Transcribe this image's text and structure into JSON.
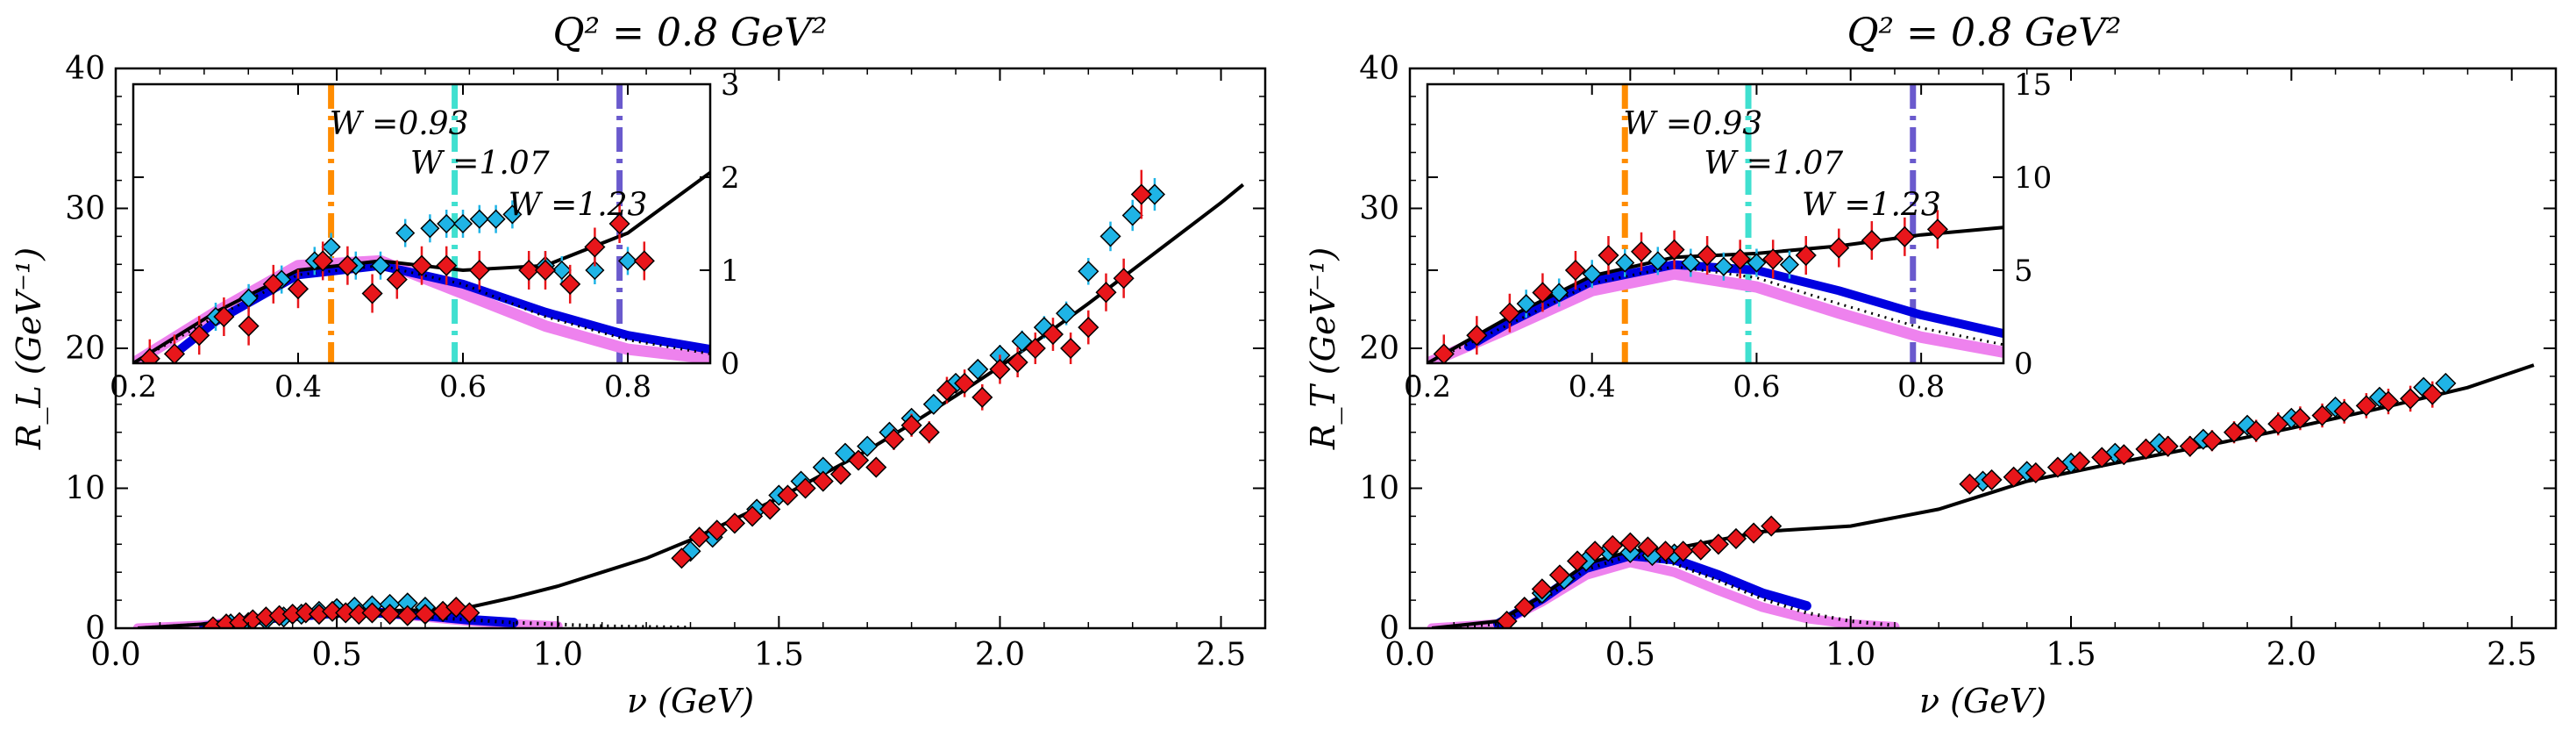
{
  "chart_data": [
    {
      "type": "scatter",
      "title": "Q² = 0.8 GeV²",
      "xlabel": "ν (GeV)",
      "ylabel": "R_L (GeV⁻¹)",
      "xlim": [
        0.0,
        2.6
      ],
      "ylim": [
        0,
        40
      ],
      "xticks": [
        "0.0",
        "0.5",
        "1.0",
        "1.5",
        "2.0",
        "2.5"
      ],
      "yticks": [
        "0",
        "10",
        "20",
        "30",
        "40"
      ],
      "series": [
        {
          "name": "",
          "kind": "line",
          "color": "#000000",
          "style": "solid",
          "x": [
            0.05,
            0.2,
            0.35,
            0.5,
            0.6,
            0.7,
            0.8,
            0.9,
            1.0,
            1.1,
            1.2,
            1.3,
            1.4,
            1.5,
            1.6,
            1.7,
            1.8,
            1.9,
            2.0,
            2.1,
            2.2,
            2.3,
            2.4,
            2.5,
            2.55
          ],
          "y": [
            0.0,
            0.3,
            0.8,
            1.2,
            1.25,
            1.3,
            1.5,
            2.2,
            3.0,
            4.0,
            5.0,
            6.3,
            7.8,
            9.3,
            11.0,
            12.7,
            14.6,
            16.6,
            18.7,
            20.9,
            23.2,
            25.6,
            28.0,
            30.4,
            31.7
          ]
        },
        {
          "name": "",
          "kind": "line",
          "color": "#000000",
          "style": "dotted",
          "x": [
            0.05,
            0.3,
            0.5,
            0.7,
            0.9,
            1.1,
            1.3
          ],
          "y": [
            0.0,
            0.5,
            1.0,
            0.8,
            0.4,
            0.15,
            0.05
          ]
        },
        {
          "name": "",
          "kind": "band",
          "color": "#ee82ee",
          "x": [
            0.05,
            0.2,
            0.35,
            0.5,
            0.6,
            0.7,
            0.8,
            0.9,
            1.0
          ],
          "y": [
            0.0,
            0.2,
            0.8,
            1.2,
            1.1,
            0.8,
            0.5,
            0.3,
            0.15
          ]
        },
        {
          "name": "",
          "kind": "band",
          "color": "#0000e0",
          "x": [
            0.2,
            0.35,
            0.5,
            0.6,
            0.7,
            0.8,
            0.9
          ],
          "y": [
            0.1,
            0.7,
            1.1,
            1.1,
            0.9,
            0.6,
            0.4
          ]
        },
        {
          "name": "",
          "kind": "points",
          "color": "#1fb4e6",
          "marker": "diamond",
          "x": [
            0.26,
            0.3,
            0.34,
            0.38,
            0.42,
            0.46,
            0.5,
            0.54,
            0.58,
            0.62,
            0.66,
            0.7,
            0.74,
            1.3,
            1.35,
            1.4,
            1.45,
            1.5,
            1.55,
            1.6,
            1.65,
            1.7,
            1.75,
            1.8,
            1.85,
            1.9,
            1.95,
            2.0,
            2.05,
            2.1,
            2.15,
            2.2,
            2.25,
            2.3,
            2.35
          ],
          "y": [
            0.3,
            0.4,
            0.6,
            0.8,
            1.0,
            1.2,
            1.4,
            1.5,
            1.6,
            1.7,
            1.8,
            1.5,
            1.2,
            5.5,
            6.5,
            7.5,
            8.5,
            9.5,
            10.5,
            11.5,
            12.5,
            13.0,
            14.0,
            15.0,
            16.0,
            17.5,
            18.5,
            19.5,
            20.5,
            21.5,
            22.5,
            25.5,
            28.0,
            29.5,
            31.0
          ]
        },
        {
          "name": "",
          "kind": "points",
          "color": "#e8161b",
          "marker": "diamond",
          "x": [
            0.22,
            0.25,
            0.28,
            0.31,
            0.34,
            0.37,
            0.4,
            0.43,
            0.46,
            0.49,
            0.52,
            0.55,
            0.58,
            0.62,
            0.66,
            0.7,
            0.74,
            0.77,
            0.8,
            1.28,
            1.32,
            1.36,
            1.4,
            1.44,
            1.48,
            1.52,
            1.56,
            1.6,
            1.64,
            1.68,
            1.72,
            1.76,
            1.8,
            1.84,
            1.88,
            1.92,
            1.96,
            2.0,
            2.04,
            2.08,
            2.12,
            2.16,
            2.2,
            2.24,
            2.28,
            2.32
          ],
          "y": [
            0.1,
            0.3,
            0.4,
            0.6,
            0.8,
            0.9,
            1.0,
            1.1,
            1.0,
            1.2,
            1.1,
            1.0,
            1.1,
            1.0,
            0.9,
            1.0,
            1.2,
            1.5,
            1.1,
            5.0,
            6.5,
            7.0,
            7.5,
            8.0,
            8.5,
            9.5,
            10.0,
            10.5,
            11.0,
            12.0,
            11.5,
            13.5,
            14.5,
            14.0,
            17.0,
            17.5,
            16.5,
            18.5,
            19.0,
            20.0,
            21.0,
            20.0,
            21.5,
            24.0,
            25.0,
            31.0
          ]
        }
      ],
      "inset": {
        "xlim": [
          0.2,
          0.9
        ],
        "ylim": [
          0,
          3
        ],
        "xticks": [
          "0.2",
          "0.4",
          "0.6",
          "0.8"
        ],
        "yticks": [
          "0",
          "1",
          "2",
          "3"
        ],
        "vlines": [
          {
            "x": 0.44,
            "color": "#ff8c00",
            "label": "W =0.93"
          },
          {
            "x": 0.59,
            "color": "#40e0d0",
            "label": "W =1.07"
          },
          {
            "x": 0.79,
            "color": "#6a5acd",
            "label": "W =1.23"
          }
        ],
        "curves": {
          "solid": {
            "x": [
              0.2,
              0.3,
              0.4,
              0.5,
              0.6,
              0.7,
              0.8,
              0.9
            ],
            "y": [
              0.0,
              0.55,
              1.0,
              1.1,
              1.0,
              1.05,
              1.4,
              2.05
            ]
          },
          "dotted": {
            "x": [
              0.2,
              0.3,
              0.4,
              0.5,
              0.6,
              0.7,
              0.8,
              0.9
            ],
            "y": [
              0.0,
              0.5,
              0.95,
              1.05,
              0.85,
              0.5,
              0.25,
              0.1
            ]
          },
          "magenta": {
            "x": [
              0.2,
              0.3,
              0.4,
              0.5,
              0.6,
              0.7,
              0.8,
              0.9
            ],
            "y": [
              0.0,
              0.55,
              1.05,
              1.1,
              0.75,
              0.4,
              0.15,
              0.05
            ]
          },
          "blue": {
            "x": [
              0.25,
              0.3,
              0.4,
              0.5,
              0.6,
              0.7,
              0.8,
              0.9
            ],
            "y": [
              0.1,
              0.45,
              0.95,
              1.05,
              0.85,
              0.55,
              0.3,
              0.15
            ]
          }
        },
        "points_cyan": {
          "x": [
            0.3,
            0.34,
            0.38,
            0.42,
            0.44,
            0.47,
            0.5,
            0.53,
            0.56,
            0.58,
            0.6,
            0.62,
            0.64,
            0.66,
            0.68,
            0.7,
            0.72,
            0.76,
            0.8
          ],
          "y": [
            0.5,
            0.7,
            0.9,
            1.1,
            1.25,
            1.05,
            1.05,
            1.4,
            1.45,
            1.5,
            1.5,
            1.55,
            1.55,
            1.6,
            1.0,
            1.05,
            1.0,
            1.0,
            1.1
          ]
        },
        "points_red": {
          "x": [
            0.22,
            0.25,
            0.28,
            0.31,
            0.34,
            0.37,
            0.4,
            0.43,
            0.46,
            0.49,
            0.52,
            0.55,
            0.58,
            0.62,
            0.68,
            0.7,
            0.73,
            0.76,
            0.79,
            0.82
          ],
          "y": [
            0.05,
            0.1,
            0.3,
            0.5,
            0.4,
            0.85,
            0.8,
            1.1,
            1.05,
            0.75,
            0.9,
            1.05,
            1.05,
            1.0,
            1.0,
            1.0,
            0.85,
            1.25,
            1.5,
            1.1
          ]
        }
      }
    },
    {
      "type": "scatter",
      "title": "Q² = 0.8 GeV²",
      "xlabel": "ν (GeV)",
      "ylabel": "R_T (GeV⁻¹)",
      "xlim": [
        0.0,
        2.6
      ],
      "ylim": [
        0,
        40
      ],
      "xticks": [
        "0.0",
        "0.5",
        "1.0",
        "1.5",
        "2.0",
        "2.5"
      ],
      "yticks": [
        "0",
        "10",
        "20",
        "30",
        "40"
      ],
      "series": [
        {
          "name": "",
          "kind": "line",
          "color": "#000000",
          "style": "solid",
          "x": [
            0.05,
            0.2,
            0.3,
            0.4,
            0.5,
            0.6,
            0.7,
            0.8,
            0.9,
            1.0,
            1.2,
            1.4,
            1.6,
            1.8,
            2.0,
            2.2,
            2.4,
            2.55
          ],
          "y": [
            0.0,
            0.5,
            2.3,
            4.6,
            5.5,
            5.7,
            6.3,
            6.9,
            7.1,
            7.3,
            8.5,
            10.5,
            11.8,
            13.0,
            14.3,
            15.7,
            17.2,
            18.8
          ]
        },
        {
          "name": "",
          "kind": "line",
          "color": "#000000",
          "style": "dotted",
          "x": [
            0.05,
            0.2,
            0.3,
            0.4,
            0.5,
            0.6,
            0.7,
            0.8,
            0.9,
            1.0,
            1.1
          ],
          "y": [
            0.0,
            0.3,
            2.0,
            4.2,
            5.2,
            4.6,
            3.4,
            2.1,
            1.1,
            0.5,
            0.2
          ]
        },
        {
          "name": "",
          "kind": "band",
          "color": "#ee82ee",
          "x": [
            0.05,
            0.2,
            0.3,
            0.4,
            0.5,
            0.6,
            0.7,
            0.8,
            0.9,
            1.0,
            1.1
          ],
          "y": [
            0.0,
            0.3,
            1.9,
            3.8,
            4.7,
            4.0,
            2.7,
            1.5,
            0.7,
            0.3,
            0.1
          ]
        },
        {
          "name": "",
          "kind": "band",
          "color": "#0000e0",
          "x": [
            0.2,
            0.3,
            0.4,
            0.5,
            0.6,
            0.7,
            0.8,
            0.9
          ],
          "y": [
            0.3,
            2.1,
            4.3,
            5.2,
            4.9,
            3.8,
            2.5,
            1.6
          ]
        },
        {
          "name": "",
          "kind": "points",
          "color": "#1fb4e6",
          "marker": "diamond",
          "x": [
            0.3,
            0.35,
            0.4,
            0.45,
            0.5,
            0.55,
            0.6,
            1.3,
            1.4,
            1.5,
            1.6,
            1.7,
            1.8,
            1.9,
            2.0,
            2.1,
            2.2,
            2.3,
            2.35
          ],
          "y": [
            2.5,
            3.5,
            4.8,
            5.5,
            5.4,
            5.2,
            5.3,
            10.5,
            11.2,
            11.8,
            12.5,
            13.2,
            13.5,
            14.5,
            15.0,
            15.8,
            16.5,
            17.2,
            17.5
          ]
        },
        {
          "name": "",
          "kind": "points",
          "color": "#e8161b",
          "marker": "diamond",
          "x": [
            0.22,
            0.26,
            0.3,
            0.34,
            0.38,
            0.42,
            0.46,
            0.5,
            0.54,
            0.58,
            0.62,
            0.66,
            0.7,
            0.74,
            0.78,
            0.82,
            1.27,
            1.32,
            1.37,
            1.42,
            1.47,
            1.52,
            1.57,
            1.62,
            1.67,
            1.72,
            1.77,
            1.82,
            1.87,
            1.92,
            1.97,
            2.02,
            2.07,
            2.12,
            2.17,
            2.22,
            2.27,
            2.32
          ],
          "y": [
            0.5,
            1.5,
            2.8,
            3.8,
            4.8,
            5.5,
            5.9,
            6.1,
            5.8,
            5.5,
            5.5,
            5.6,
            6.0,
            6.4,
            6.8,
            7.3,
            10.3,
            10.6,
            10.8,
            11.1,
            11.5,
            11.9,
            12.2,
            12.4,
            12.8,
            13.0,
            13.0,
            13.4,
            14.0,
            14.1,
            14.6,
            15.0,
            15.2,
            15.5,
            15.9,
            16.2,
            16.4,
            16.7
          ]
        }
      ],
      "inset": {
        "xlim": [
          0.2,
          0.9
        ],
        "ylim": [
          0,
          15
        ],
        "xticks": [
          "0.2",
          "0.4",
          "0.6",
          "0.8"
        ],
        "yticks": [
          "0",
          "5",
          "10",
          "15"
        ],
        "vlines": [
          {
            "x": 0.44,
            "color": "#ff8c00",
            "label": "W =0.93"
          },
          {
            "x": 0.59,
            "color": "#40e0d0",
            "label": "W =1.07"
          },
          {
            "x": 0.79,
            "color": "#6a5acd",
            "label": "W =1.23"
          }
        ],
        "curves": {
          "solid": {
            "x": [
              0.2,
              0.3,
              0.4,
              0.5,
              0.6,
              0.7,
              0.8,
              0.9
            ],
            "y": [
              0.0,
              2.5,
              4.7,
              5.7,
              5.9,
              6.3,
              6.9,
              7.3
            ]
          },
          "dotted": {
            "x": [
              0.2,
              0.3,
              0.4,
              0.5,
              0.6,
              0.7,
              0.8,
              0.9
            ],
            "y": [
              0.0,
              2.1,
              4.3,
              5.2,
              4.6,
              3.2,
              1.9,
              1.0
            ]
          },
          "magenta": {
            "x": [
              0.2,
              0.3,
              0.4,
              0.5,
              0.6,
              0.7,
              0.8,
              0.9
            ],
            "y": [
              0.0,
              1.9,
              3.9,
              4.8,
              4.1,
              2.7,
              1.4,
              0.6
            ]
          },
          "blue": {
            "x": [
              0.25,
              0.3,
              0.4,
              0.5,
              0.6,
              0.7,
              0.8,
              0.9
            ],
            "y": [
              0.9,
              2.2,
              4.4,
              5.3,
              5.0,
              3.9,
              2.6,
              1.6
            ]
          }
        },
        "points_cyan": {
          "x": [
            0.32,
            0.36,
            0.4,
            0.44,
            0.48,
            0.52,
            0.56,
            0.6,
            0.64
          ],
          "y": [
            3.2,
            3.8,
            4.8,
            5.4,
            5.5,
            5.4,
            5.2,
            5.4,
            5.3
          ]
        },
        "points_red": {
          "x": [
            0.22,
            0.26,
            0.3,
            0.34,
            0.38,
            0.42,
            0.46,
            0.5,
            0.54,
            0.58,
            0.62,
            0.66,
            0.7,
            0.74,
            0.78,
            0.82
          ],
          "y": [
            0.5,
            1.5,
            2.7,
            3.8,
            5.0,
            5.8,
            6.0,
            6.1,
            5.8,
            5.6,
            5.6,
            5.8,
            6.2,
            6.6,
            6.8,
            7.2
          ]
        }
      }
    }
  ]
}
